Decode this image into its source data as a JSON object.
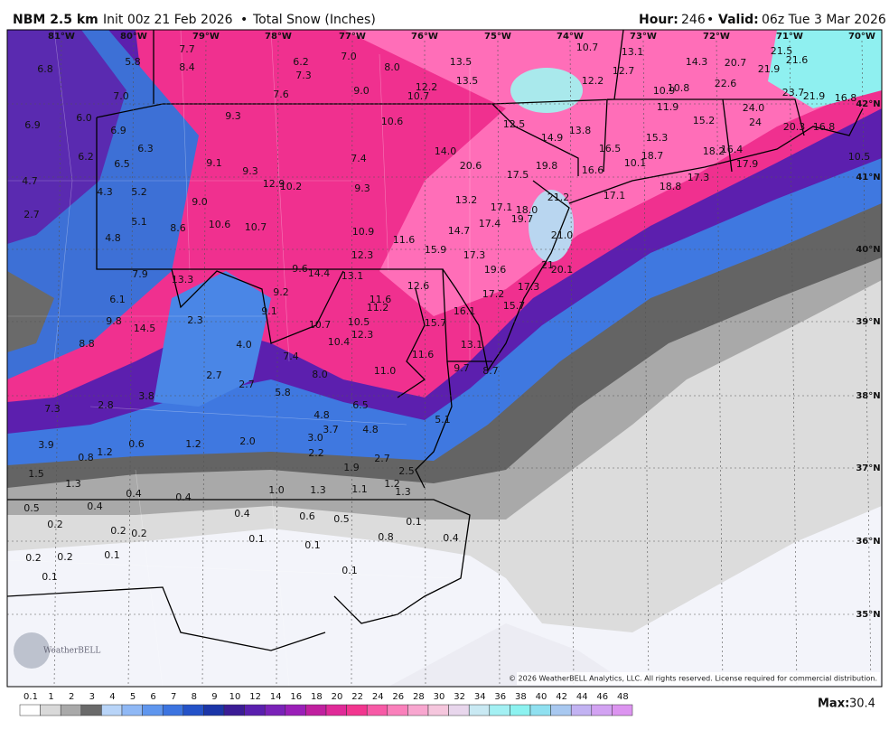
{
  "header": {
    "model": "NBM 2.5 km",
    "init": "Init 00z 21 Feb 2026",
    "separator": "•",
    "product": "Total Snow (Inches)",
    "hour_label": "Hour:",
    "hour": "246",
    "valid_label": "Valid:",
    "valid": "06z Tue 3 Mar 2026"
  },
  "map": {
    "longitudes": [
      "81°W",
      "80°W",
      "79°W",
      "78°W",
      "77°W",
      "76°W",
      "75°W",
      "74°W",
      "73°W",
      "72°W",
      "71°W",
      "70°W"
    ],
    "latitudes": [
      "42°N",
      "41°N",
      "40°N",
      "39°N",
      "38°N",
      "37°N",
      "36°N",
      "35°N"
    ],
    "snow_labels": [
      "7.7",
      "5.8",
      "8.4",
      "6.8",
      "6.2",
      "7.0",
      "7.3",
      "8.0",
      "13.5",
      "10.7",
      "13.1",
      "14.3",
      "20.7",
      "21.5",
      "21.6",
      "21.9",
      "12.7",
      "13.5",
      "12.2",
      "10.7",
      "9.0",
      "7.6",
      "7.0",
      "12.2",
      "22.6",
      "10.8",
      "10.9",
      "23.7",
      "21.9",
      "16.8",
      "11.9",
      "24.0",
      "9.3",
      "6.0",
      "6.9",
      "10.6",
      "12.5",
      "13.8",
      "15.2",
      "24",
      "20.3",
      "16.8",
      "6.9",
      "14.9",
      "15.3",
      "6.3",
      "14.0",
      "16.5",
      "18.2",
      "16.4",
      "6.2",
      "7.4",
      "18.7",
      "10.5",
      "9.1",
      "6.5",
      "20.6",
      "19.8",
      "17.9",
      "10.1",
      "16.6",
      "9.3",
      "17.5",
      "4.7",
      "12.9",
      "10.2",
      "9.3",
      "18.8",
      "17.3",
      "4.3",
      "5.2",
      "21.2",
      "17.1",
      "9.0",
      "13.2",
      "17.1",
      "18.0",
      "2.7",
      "10.6",
      "10.7",
      "5.1",
      "19.7",
      "17.4",
      "8.6",
      "10.9",
      "14.7",
      "21.0",
      "4.8",
      "11.6",
      "15.9",
      "12.3",
      "17.3",
      "21",
      "20.1",
      "19.6",
      "9.6",
      "14.4",
      "13.1",
      "7.9",
      "13.3",
      "12.6",
      "17.3",
      "6.1",
      "9.2",
      "11.6",
      "11.2",
      "17.2",
      "15.7",
      "16.1",
      "9.1",
      "15.7",
      "2.3",
      "9.8",
      "10.7",
      "10.5",
      "14.5",
      "12.3",
      "10.4",
      "8.8",
      "4.0",
      "13.1",
      "7.4",
      "11.6",
      "11.0",
      "9.7",
      "8.7",
      "8.0",
      "2.7",
      "2.7",
      "5.8",
      "3.8",
      "2.8",
      "6.5",
      "7.3",
      "4.8",
      "5.1",
      "3.7",
      "4.8",
      "3.0",
      "2.0",
      "1.2",
      "0.6",
      "3.9",
      "1.2",
      "2.2",
      "0.8",
      "1.9",
      "2.7",
      "2.5",
      "1.5",
      "1.3",
      "1.0",
      "1.3",
      "1.1",
      "1.2",
      "1.3",
      "0.4",
      "0.4",
      "0.5",
      "0.4",
      "0.6",
      "0.5",
      "0.4",
      "0.2",
      "0.1",
      "0.2",
      "0.2",
      "0.8",
      "0.4",
      "0.1",
      "0.1",
      "0.2",
      "0.2",
      "0.1",
      "0.1",
      "0.1"
    ],
    "logo": "WeatherBELL",
    "copyright": "© 2026 WeatherBELL Analytics, LLC. All rights reserved. License required for commercial distribution."
  },
  "legend": {
    "ticks": [
      "0.1",
      "1",
      "2",
      "3",
      "4",
      "5",
      "6",
      "7",
      "8",
      "9",
      "10",
      "12",
      "14",
      "16",
      "18",
      "20",
      "22",
      "24",
      "26",
      "28",
      "30",
      "32",
      "34",
      "36",
      "38",
      "40",
      "42",
      "44",
      "46",
      "48"
    ],
    "max_label": "Max:",
    "max": "30.4"
  }
}
